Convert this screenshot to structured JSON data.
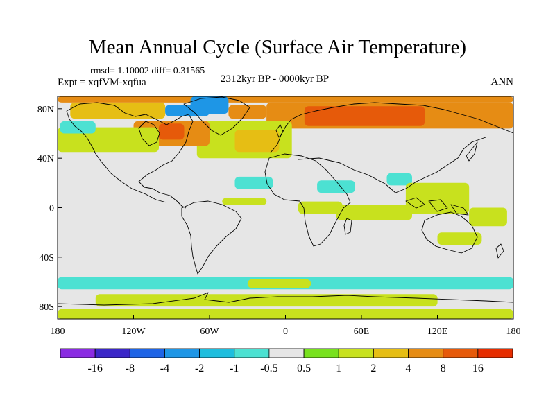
{
  "title": "Mean Annual Cycle (Surface Air Temperature)",
  "stats_text": "rmsd= 1.10002 diff= 0.31565",
  "experiment_text": "Expt = xqfVM-xqfua",
  "period_text": "2312kyr BP - 0000kyr BP",
  "season_text": "ANN",
  "chart_data": {
    "type": "heatmap",
    "projection": "cylindrical-equidistant",
    "xlim": [
      -180,
      180
    ],
    "ylim": [
      -90,
      90
    ],
    "x_ticks": [
      {
        "value": -180,
        "label": "180"
      },
      {
        "value": -120,
        "label": "120W"
      },
      {
        "value": -60,
        "label": "60W"
      },
      {
        "value": 0,
        "label": "0"
      },
      {
        "value": 60,
        "label": "60E"
      },
      {
        "value": 120,
        "label": "120E"
      },
      {
        "value": 180,
        "label": "180"
      }
    ],
    "y_ticks": [
      {
        "value": 80,
        "label": "80N"
      },
      {
        "value": 40,
        "label": "40N"
      },
      {
        "value": 0,
        "label": "0"
      },
      {
        "value": -40,
        "label": "40S"
      },
      {
        "value": -80,
        "label": "80S"
      }
    ],
    "colorbar": {
      "boundaries": [
        "-16",
        "-8",
        "-4",
        "-2",
        "-1",
        "-0.5",
        "0.5",
        "1",
        "2",
        "4",
        "8",
        "16"
      ],
      "colors": [
        "#8a2be2",
        "#3b27c8",
        "#1e64e6",
        "#1e96e6",
        "#1ebede",
        "#4ce1d2",
        "#e6e6e6",
        "#78e11e",
        "#c8e11e",
        "#e6be14",
        "#e68c14",
        "#e65a0a",
        "#e62d00"
      ]
    },
    "regions": [
      {
        "lon": [
          -180,
          180
        ],
        "lat": [
          85,
          90
        ],
        "value": 4
      },
      {
        "lon": [
          -170,
          -95
        ],
        "lat": [
          72,
          85
        ],
        "value": 2
      },
      {
        "lon": [
          -95,
          -60
        ],
        "lat": [
          74,
          83
        ],
        "value": -4
      },
      {
        "lon": [
          -75,
          -45
        ],
        "lat": [
          76,
          90
        ],
        "value": -4
      },
      {
        "lon": [
          -45,
          -15
        ],
        "lat": [
          72,
          83
        ],
        "value": 4
      },
      {
        "lon": [
          -15,
          180
        ],
        "lat": [
          64,
          85
        ],
        "value": 4
      },
      {
        "lon": [
          15,
          110
        ],
        "lat": [
          66,
          82
        ],
        "value": 8
      },
      {
        "lon": [
          -70,
          5
        ],
        "lat": [
          40,
          70
        ],
        "value": 1
      },
      {
        "lon": [
          -40,
          -5
        ],
        "lat": [
          45,
          63
        ],
        "value": 2
      },
      {
        "lon": [
          -120,
          -60
        ],
        "lat": [
          50,
          70
        ],
        "value": 4
      },
      {
        "lon": [
          -100,
          -80
        ],
        "lat": [
          55,
          68
        ],
        "value": 8
      },
      {
        "lon": [
          -180,
          -100
        ],
        "lat": [
          45,
          65
        ],
        "value": 1
      },
      {
        "lon": [
          -178,
          -150
        ],
        "lat": [
          60,
          70
        ],
        "value": -1
      },
      {
        "lon": [
          -40,
          -10
        ],
        "lat": [
          15,
          25
        ],
        "value": -1
      },
      {
        "lon": [
          25,
          55
        ],
        "lat": [
          12,
          22
        ],
        "value": -1
      },
      {
        "lon": [
          80,
          100
        ],
        "lat": [
          18,
          28
        ],
        "value": -1
      },
      {
        "lon": [
          -50,
          -15
        ],
        "lat": [
          2,
          8
        ],
        "value": 1
      },
      {
        "lon": [
          10,
          45
        ],
        "lat": [
          -5,
          5
        ],
        "value": 1
      },
      {
        "lon": [
          40,
          100
        ],
        "lat": [
          -10,
          2
        ],
        "value": 1
      },
      {
        "lon": [
          95,
          145
        ],
        "lat": [
          -5,
          20
        ],
        "value": 1
      },
      {
        "lon": [
          145,
          175
        ],
        "lat": [
          -15,
          0
        ],
        "value": 1
      },
      {
        "lon": [
          120,
          155
        ],
        "lat": [
          -30,
          -20
        ],
        "value": 1
      },
      {
        "lon": [
          -180,
          180
        ],
        "lat": [
          -66,
          -56
        ],
        "value": -1
      },
      {
        "lon": [
          -150,
          120
        ],
        "lat": [
          -80,
          -70
        ],
        "value": 1
      },
      {
        "lon": [
          -30,
          20
        ],
        "lat": [
          -65,
          -58
        ],
        "value": 1
      },
      {
        "lon": [
          -180,
          180
        ],
        "lat": [
          -90,
          -82
        ],
        "value": 1
      }
    ]
  }
}
